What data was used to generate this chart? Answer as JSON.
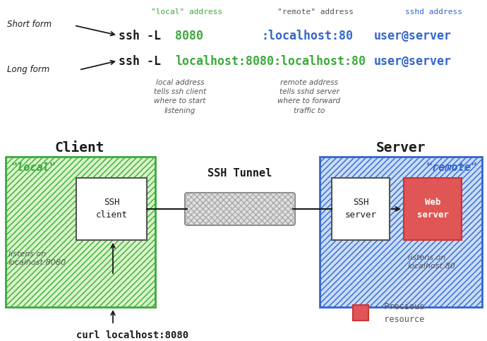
{
  "bg_color": "#ffffff",
  "green_color": "#3aaa3a",
  "blue_color": "#3366cc",
  "black_color": "#1a1a1a",
  "red_color": "#e05555",
  "light_green_fill": "#d8f5c8",
  "light_blue_fill": "#c8dcf8",
  "annotation_color": "#555555",
  "short_form_label": "Short form",
  "long_form_label": "Long form",
  "label_local": "\"local\" address",
  "label_remote": "\"remote\" address",
  "label_sshd": "sshd address",
  "annot_local": "local address\ntells ssh client\nwhere to start\nlistening",
  "annot_remote": "remote address\ntells sshd server\nwhere to forward\ntraffic to",
  "client_label": "Client",
  "server_label": "Server",
  "local_label": "\"local\"",
  "remote_label": "\"remote\"",
  "ssh_client_label": "SSH\nclient",
  "ssh_server_label": "SSH\nserver",
  "web_server_label": "Web\nserver",
  "tunnel_label": "SSH Tunnel",
  "listens_client": "listens on\nlocalhost:8080",
  "listens_server": "listens on\nlocalhost:80",
  "curl_cmd": "curl localhost:8080",
  "legend_label": "- Precious\n  resource"
}
